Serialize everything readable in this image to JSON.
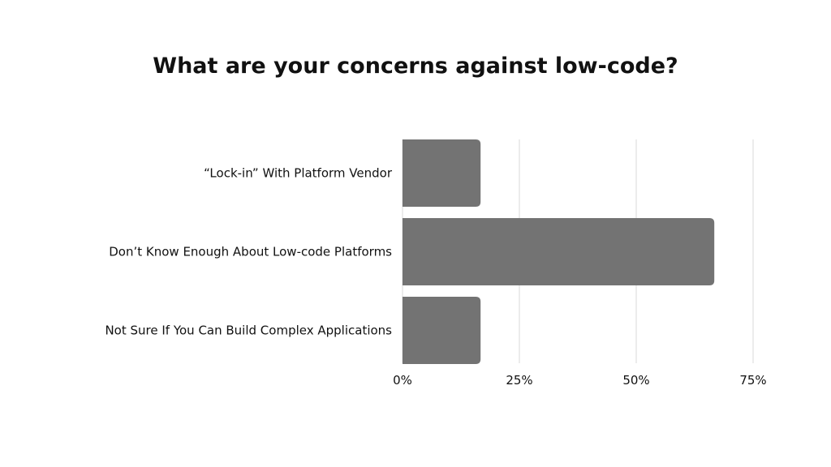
{
  "chart_data": {
    "type": "bar",
    "orientation": "horizontal",
    "title": "What are your concerns against low-code?",
    "categories": [
      "“Lock-in” With Platform Vendor",
      "Don’t Know Enough About Low-code Platforms",
      "Not Sure If You Can Build Complex Applications"
    ],
    "values": [
      16.7,
      66.7,
      16.7
    ],
    "xlabel": "",
    "ylabel": "",
    "xlim": [
      0,
      75
    ],
    "xticks": [
      0,
      25,
      50,
      75
    ],
    "xtick_labels": [
      "0%",
      "25%",
      "50%",
      "75%"
    ],
    "grid": true,
    "legend": "none",
    "bar_color": "#737373",
    "grid_color": "#d9d9d9"
  }
}
